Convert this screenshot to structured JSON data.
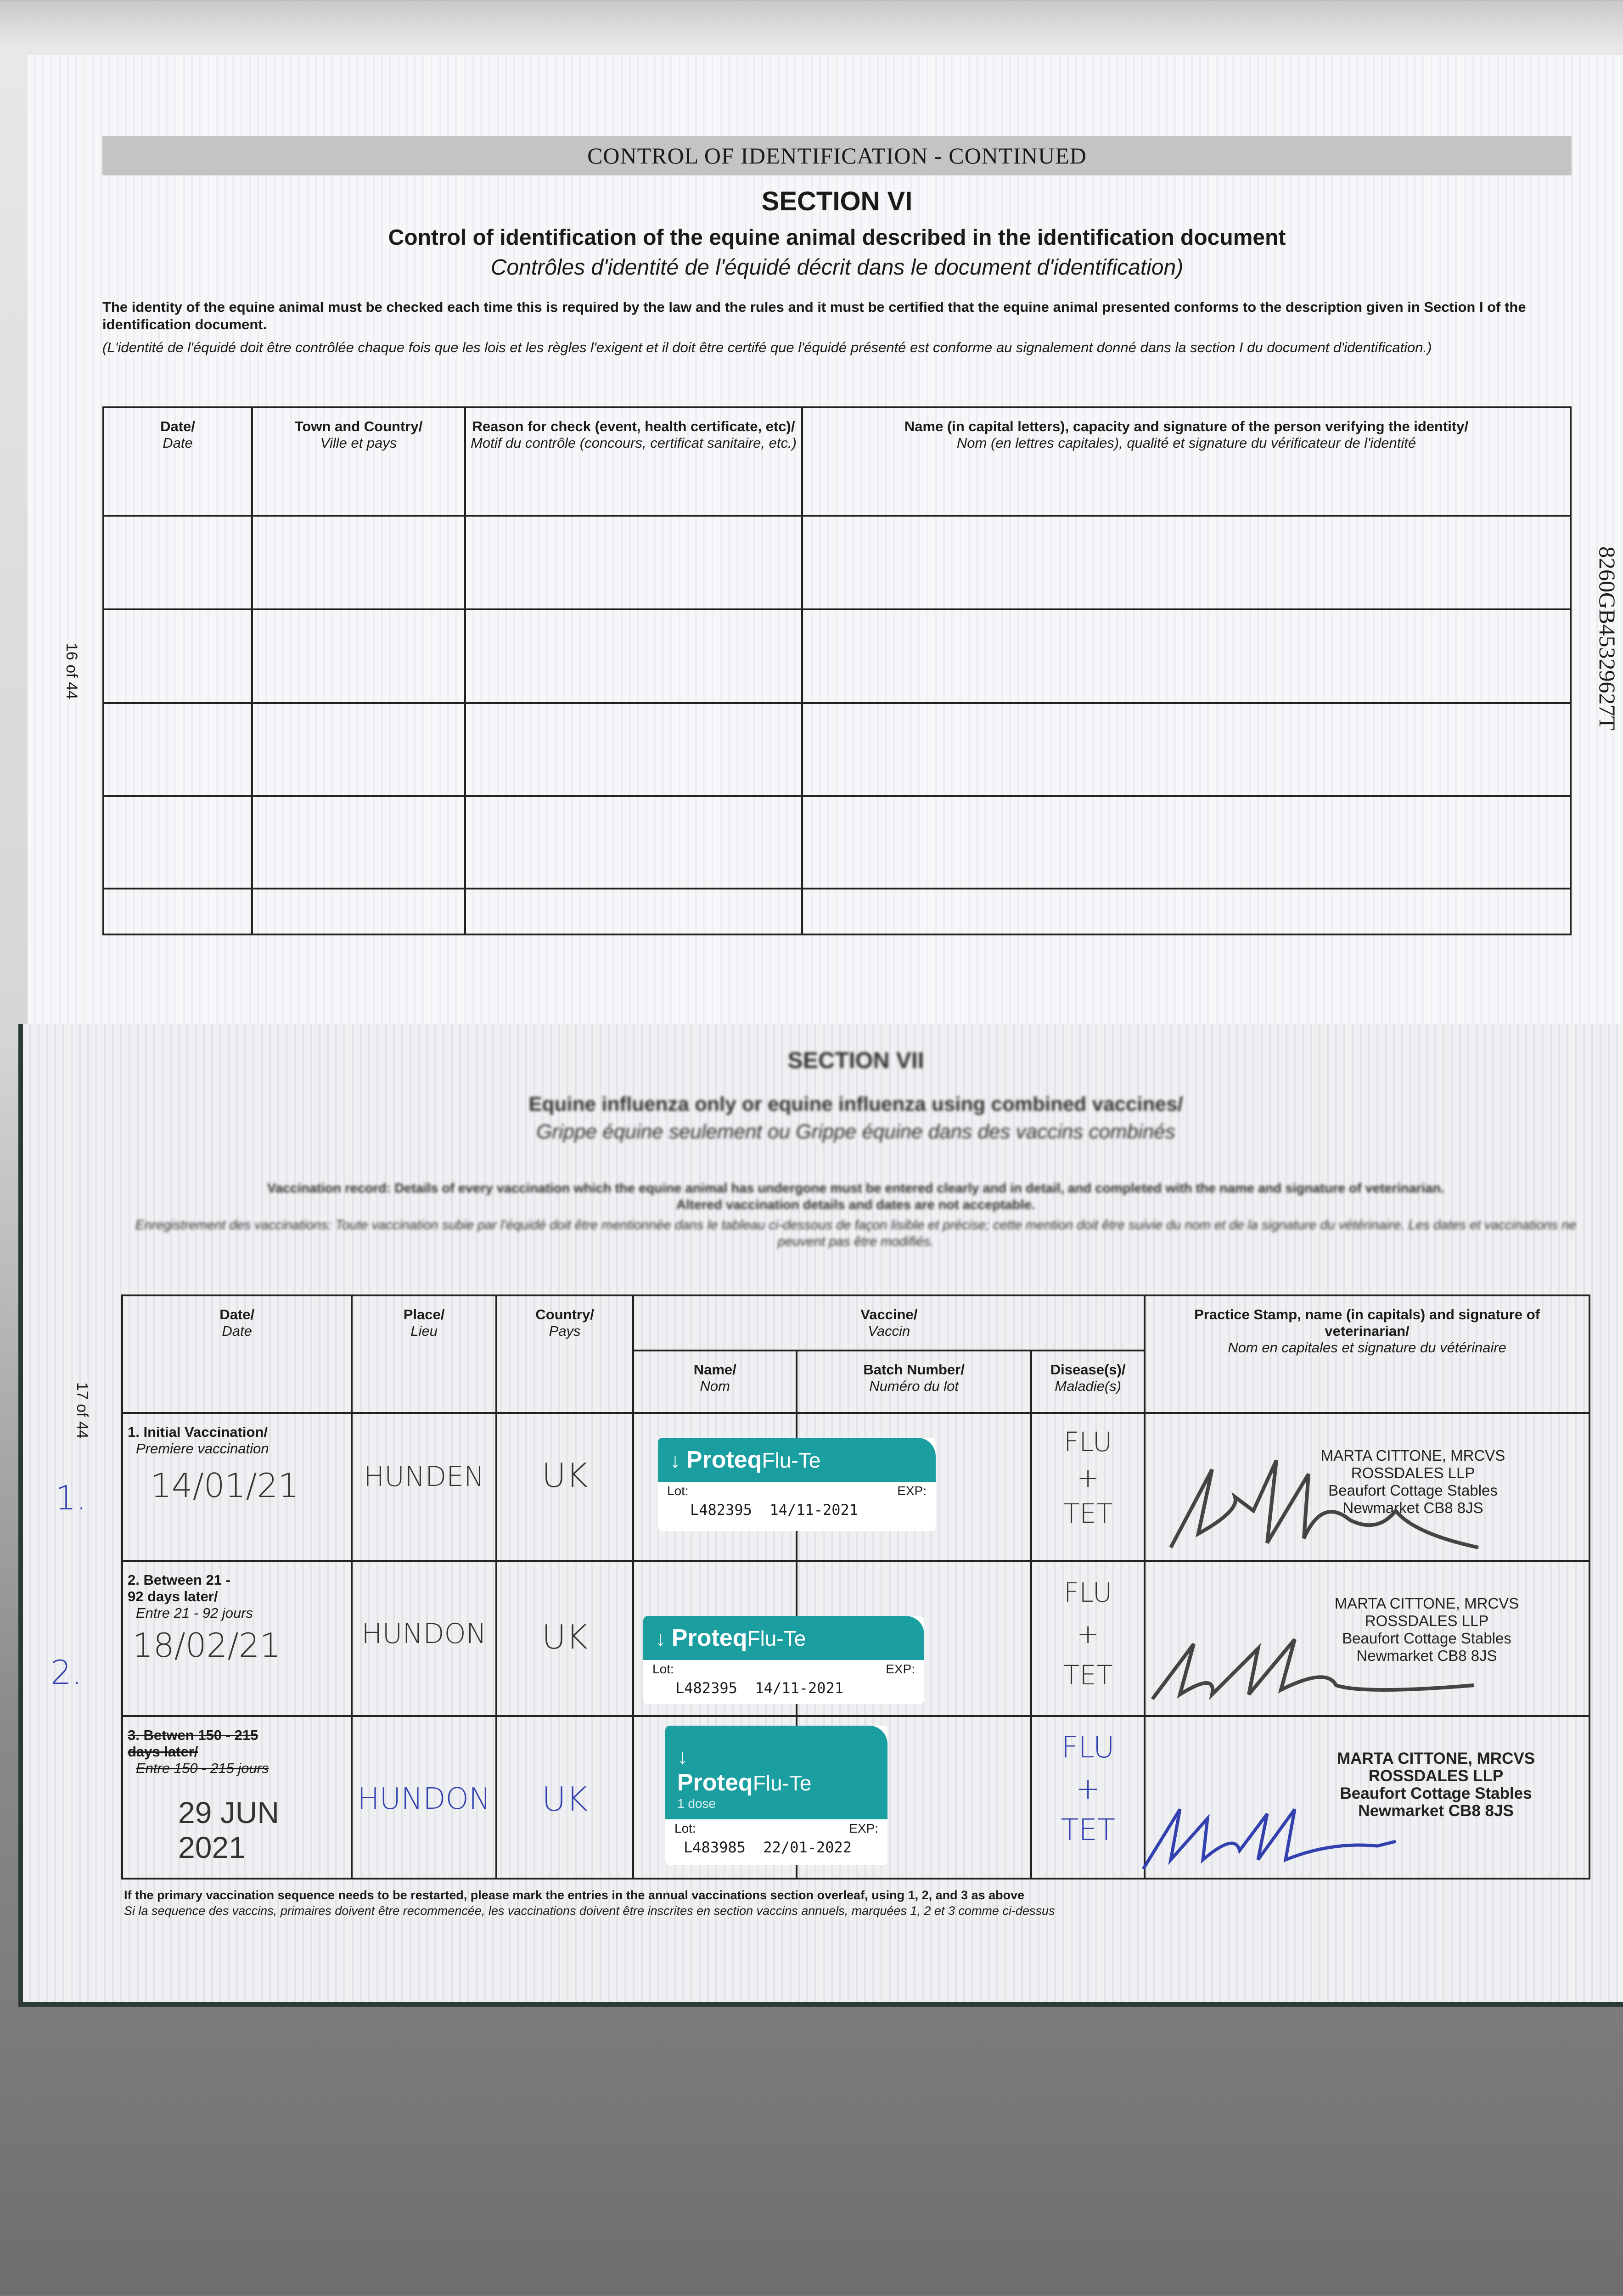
{
  "top_page": {
    "band_title": "CONTROL OF IDENTIFICATION - CONTINUED",
    "section": "SECTION VI",
    "title_en": "Control of identification of the equine animal described in the identification document",
    "title_fr": "Contrôles d'identité de l'équidé décrit dans le document d'identification)",
    "intro_en": "The identity of the equine animal must be checked each time this is required by the law and the rules and it must be certified that the equine animal presented conforms to the description given in Section I of the identification document.",
    "intro_fr": "(L'identité de l'équidé doit être contrôlée chaque fois que les lois et les règles l'exigent et il doit être certifé que l'équidé présenté est conforme au signalement donné dans la section I du document d'identification.)",
    "columns": [
      {
        "en": "Date/",
        "fr": "Date"
      },
      {
        "en": "Town and Country/",
        "fr": "Ville et pays"
      },
      {
        "en": "Reason for check (event, health certificate, etc)/",
        "fr": "Motif du contrôle (concours, certificat sanitaire, etc.)"
      },
      {
        "en": "Name (in capital letters), capacity and signature of the person verifying the identity/",
        "fr": "Nom (en lettres capitales), qualité et signature du vérificateur de l'identité"
      }
    ],
    "page_number": "16 of 44",
    "side_code": "8260GB45329627T"
  },
  "bottom_page": {
    "section": "SECTION VII",
    "title_en": "Equine influenza only or equine influenza using combined vaccines/",
    "title_fr": "Grippe équine seulement ou Grippe équine dans des vaccins combinés",
    "intro_en_1": "Vaccination record: Details of every vaccination which the equine animal has undergone must be entered clearly and in detail, and completed with the name and signature of veterinarian.",
    "intro_en_2": "Altered vaccination details and dates are not acceptable.",
    "intro_fr": "Enregistrement des vaccinations: Toute vaccination subie par l'équidé doit être mentionnée dans le tableau ci-dessous de façon lisible et précise; cette mention doit être suivie du nom et de la signature du vétérinaire. Les dates et vaccinations ne peuvent pas être modifiés.",
    "columns": {
      "date": {
        "en": "Date/",
        "fr": "Date"
      },
      "place": {
        "en": "Place/",
        "fr": "Lieu"
      },
      "country": {
        "en": "Country/",
        "fr": "Pays"
      },
      "vaccine": {
        "en": "Vaccine/",
        "fr": "Vaccin"
      },
      "name": {
        "en": "Name/",
        "fr": "Nom"
      },
      "batch": {
        "en": "Batch Number/",
        "fr": "Numéro du lot"
      },
      "disease": {
        "en": "Disease(s)/",
        "fr": "Maladie(s)"
      },
      "vet": {
        "en": "Practice Stamp, name (in capitals) and signature of veterinarian/",
        "fr": "Nom en capitales et signature du vétérinaire"
      }
    },
    "rows": [
      {
        "label_en": "1. Initial Vaccination/",
        "label_fr": "Premiere vaccination",
        "margin_mark": "1.",
        "date": "14/01/21",
        "place": "HUNDEN",
        "country": "UK",
        "sticker": {
          "brand": "Proteq",
          "product": "Flu-Te",
          "dose": "",
          "lot_label": "Lot:",
          "exp_label": "EXP:",
          "lot": "L482395",
          "exp": "14/11-2021"
        },
        "disease": [
          "FLU",
          "+",
          "TET"
        ],
        "stamp": [
          "MARTA CITTONE, MRCVS",
          "ROSSDALES LLP",
          "Beaufort Cottage Stables",
          "Newmarket CB8 8JS"
        ]
      },
      {
        "label_en": "2. Between 21 - 92 days later/",
        "label_fr": "Entre 21 - 92 jours",
        "margin_mark": "2.",
        "date": "18/02/21",
        "place": "HUNDON",
        "country": "UK",
        "sticker": {
          "brand": "Proteq",
          "product": "Flu-Te",
          "dose": "",
          "lot_label": "Lot:",
          "exp_label": "EXP:",
          "lot": "L482395",
          "exp": "14/11-2021"
        },
        "disease": [
          "FLU",
          "+",
          "TET"
        ],
        "stamp": [
          "MARTA CITTONE, MRCVS",
          "ROSSDALES LLP",
          "Beaufort Cottage Stables",
          "Newmarket CB8 8JS"
        ]
      },
      {
        "label_en": "3. Betwen 150 - 215 days later/",
        "label_fr": "Entre 150 - 215 jours",
        "margin_mark": "",
        "date": "29 JUN 2021",
        "place": "HUNDON",
        "country": "UK",
        "sticker": {
          "brand": "Proteq",
          "product": "Flu-Te",
          "dose": "1 dose",
          "lot_label": "Lot:",
          "exp_label": "EXP:",
          "lot": "L483985",
          "exp": "22/01-2022"
        },
        "disease": [
          "FLU",
          "+",
          "TET"
        ],
        "stamp": [
          "MARTA CITTONE, MRCVS",
          "ROSSDALES LLP",
          "Beaufort Cottage Stables",
          "Newmarket CB8 8JS"
        ]
      }
    ],
    "footnote_en": "If the primary vaccination sequence needs to be restarted, please mark the entries in the annual vaccinations section overleaf, using 1, 2, and 3 as above",
    "footnote_fr": "Si la sequence des vaccins, primaires doivent être recommencée, les vaccinations doivent être inscrites en section vaccins annuels, marquées 1, 2 et 3 comme ci-dessus",
    "page_number": "17 of 44"
  },
  "colors": {
    "sticker_teal": "#1a9ea0",
    "blue_ink": "#3340b0",
    "black_ink": "#333333"
  }
}
